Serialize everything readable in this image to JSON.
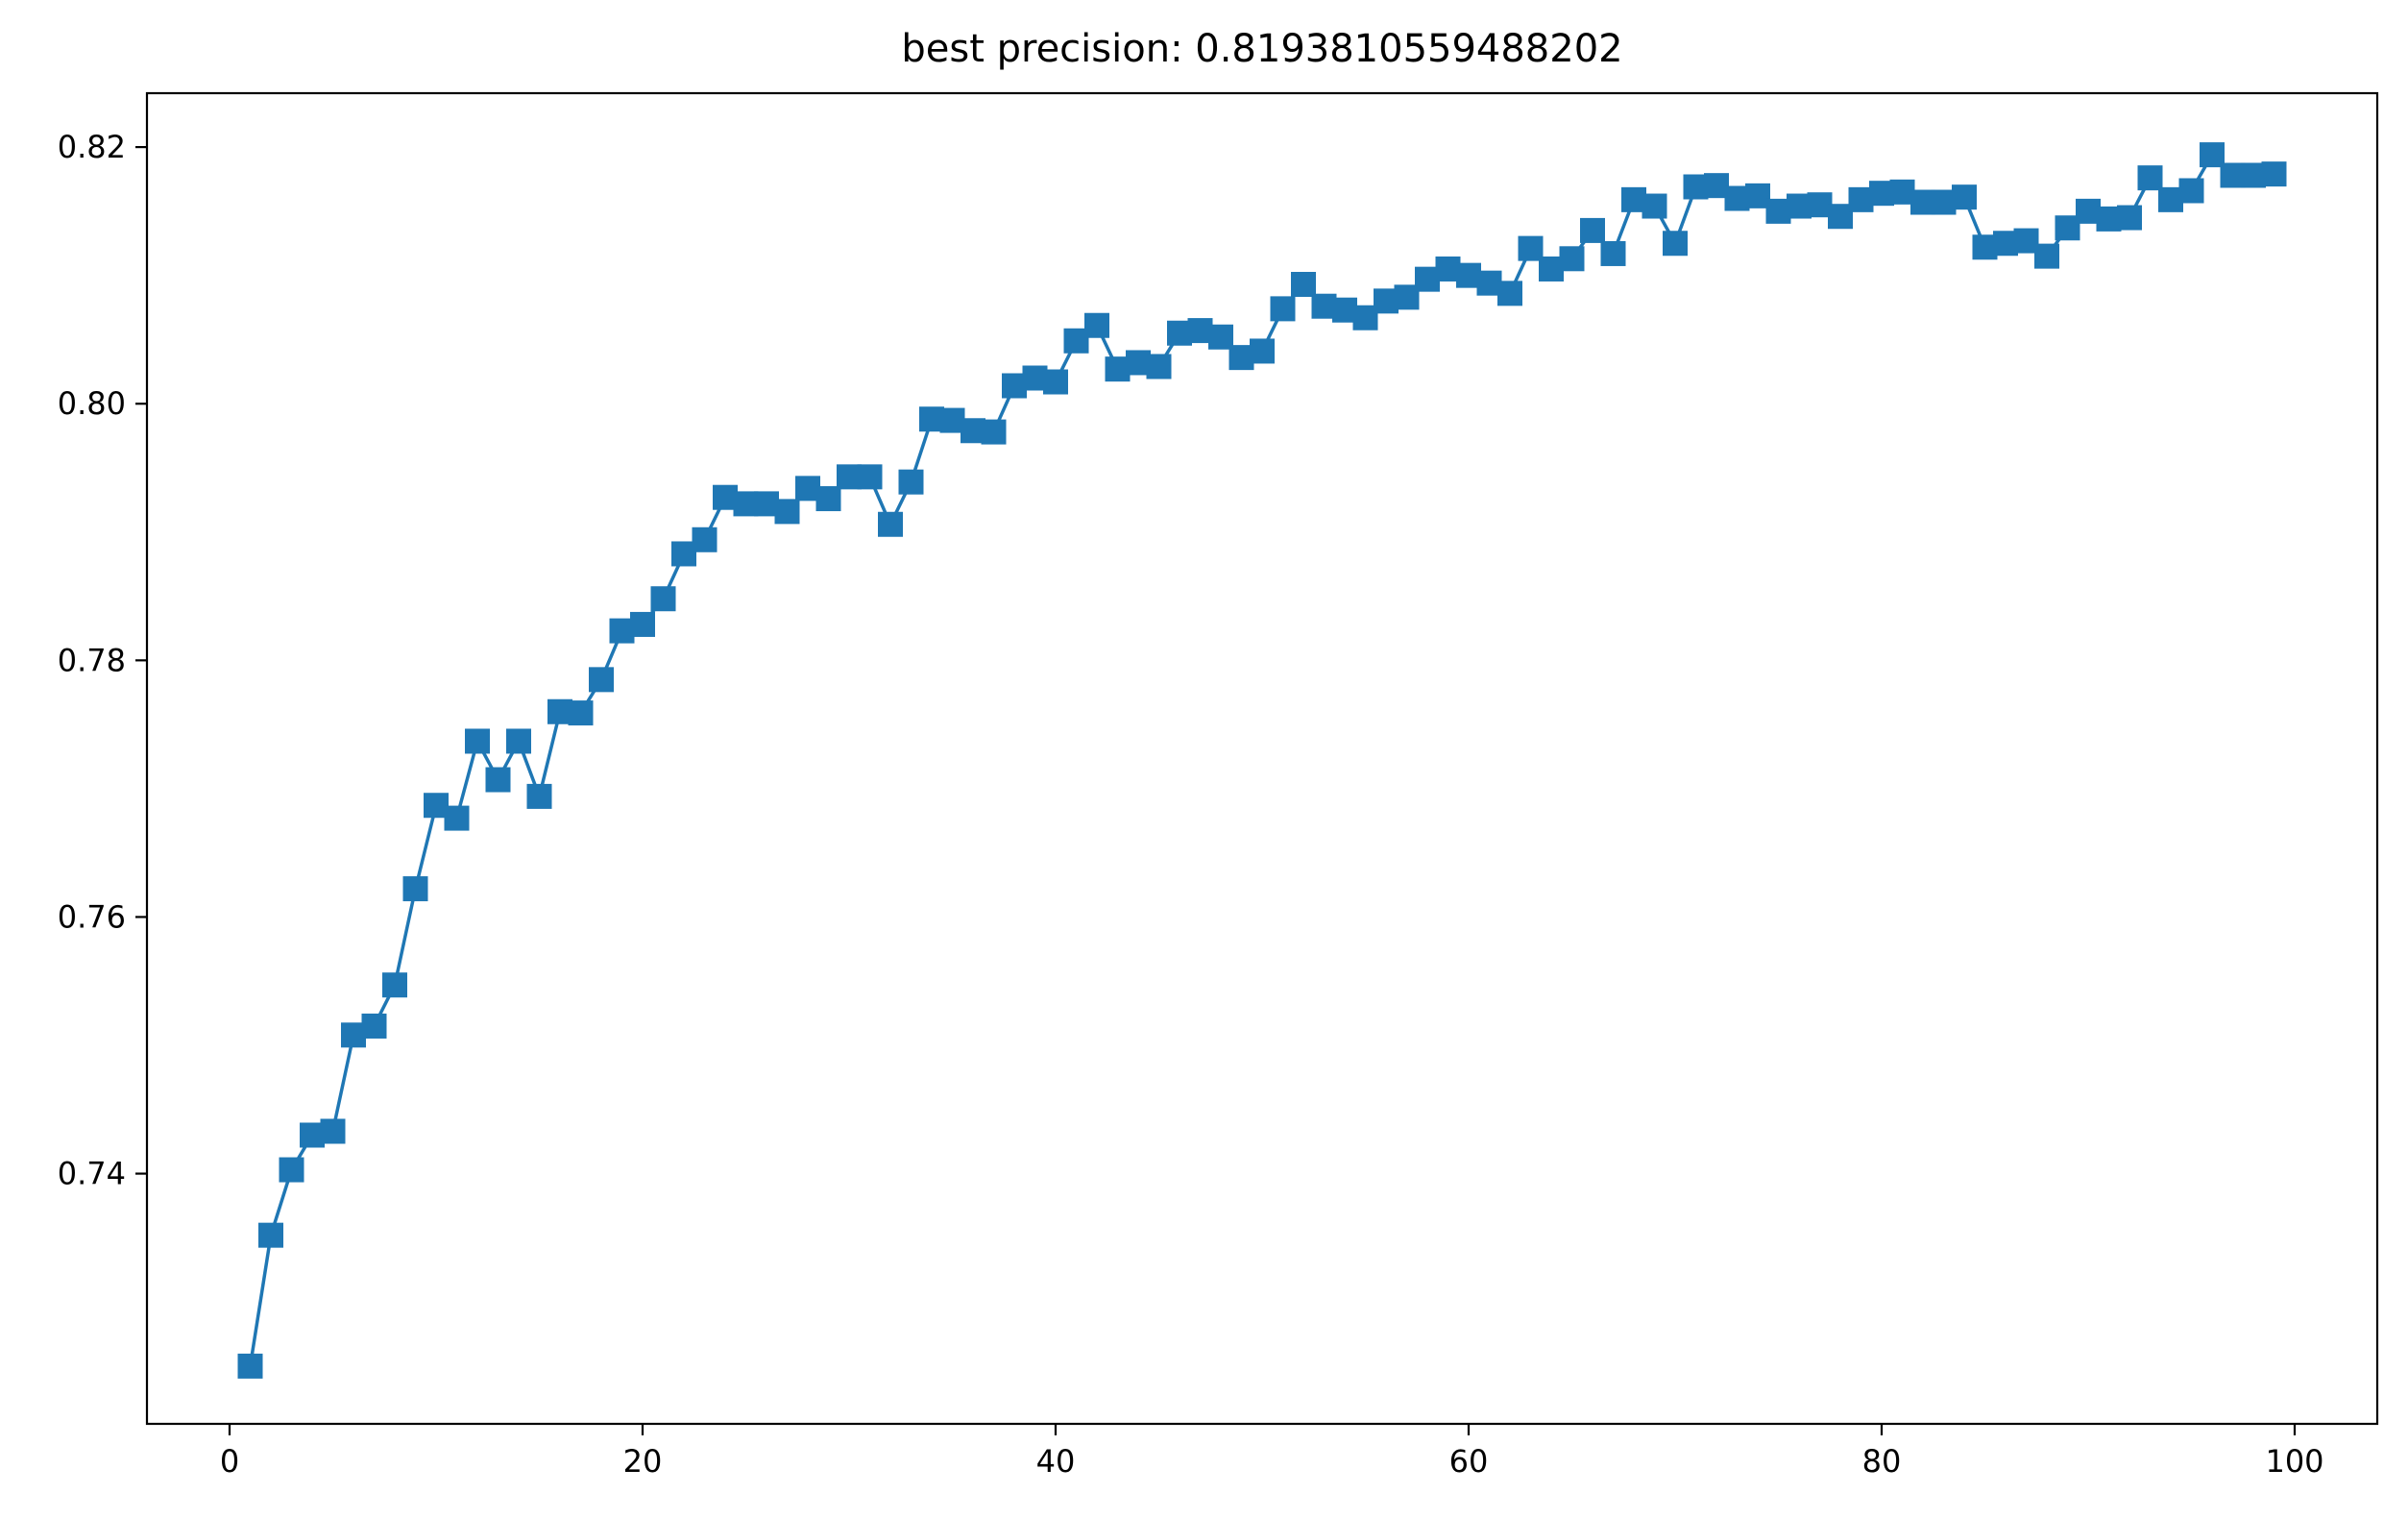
{
  "chart_data": {
    "type": "line",
    "title": "best precision: 0.8193810559488202",
    "xlabel": "",
    "ylabel": "",
    "xlim": [
      -4,
      104
    ],
    "ylim": [
      0.7205,
      0.8242
    ],
    "x_ticks": [
      0,
      20,
      40,
      60,
      80,
      100
    ],
    "x_tick_labels": [
      "0",
      "20",
      "40",
      "60",
      "80",
      "100"
    ],
    "y_ticks": [
      0.74,
      0.76,
      0.78,
      0.8,
      0.82
    ],
    "y_tick_labels": [
      "0.74",
      "0.76",
      "0.78",
      "0.80",
      "0.82"
    ],
    "grid": false,
    "legend": "none",
    "marker": "square",
    "color": "#1f77b4",
    "series": [
      {
        "x": [
          1,
          2,
          3,
          4,
          5,
          6,
          7,
          8,
          9,
          10,
          11,
          12,
          13,
          14,
          15,
          16,
          17,
          18,
          19,
          20,
          21,
          22,
          23,
          24,
          25,
          26,
          27,
          28,
          29,
          30,
          31,
          32,
          33,
          34,
          35,
          36,
          37,
          38,
          39,
          40,
          41,
          42,
          43,
          44,
          45,
          46,
          47,
          48,
          49,
          50,
          51,
          52,
          53,
          54,
          55,
          56,
          57,
          58,
          59,
          60,
          61,
          62,
          63,
          64,
          65,
          66,
          67,
          68,
          69,
          70,
          71,
          72,
          73,
          74,
          75,
          76,
          77,
          78,
          79,
          80,
          81,
          82,
          83,
          84,
          85,
          86,
          87,
          88,
          89,
          90,
          91,
          92,
          93,
          94,
          95,
          96,
          97,
          98,
          99
        ],
        "values": [
          0.725,
          0.7352,
          0.7403,
          0.743,
          0.7433,
          0.7508,
          0.7515,
          0.7547,
          0.7622,
          0.7687,
          0.7677,
          0.7737,
          0.7707,
          0.7737,
          0.7694,
          0.776,
          0.7759,
          0.7785,
          0.7823,
          0.7828,
          0.7848,
          0.7883,
          0.7894,
          0.7927,
          0.7922,
          0.7922,
          0.7916,
          0.7934,
          0.7926,
          0.7943,
          0.7943,
          0.7906,
          0.7939,
          0.7988,
          0.7987,
          0.7979,
          0.7978,
          0.8014,
          0.802,
          0.8017,
          0.8049,
          0.8061,
          0.8027,
          0.8032,
          0.8029,
          0.8055,
          0.8057,
          0.8052,
          0.8036,
          0.8041,
          0.8074,
          0.8093,
          0.8076,
          0.8073,
          0.8067,
          0.808,
          0.8083,
          0.8097,
          0.8105,
          0.81,
          0.8094,
          0.8086,
          0.8121,
          0.8105,
          0.8113,
          0.8135,
          0.8117,
          0.8159,
          0.8154,
          0.8125,
          0.8169,
          0.817,
          0.816,
          0.8162,
          0.815,
          0.8154,
          0.8155,
          0.8146,
          0.8159,
          0.8164,
          0.8165,
          0.8157,
          0.8157,
          0.8161,
          0.8122,
          0.8125,
          0.8127,
          0.8115,
          0.8137,
          0.815,
          0.8144,
          0.8145,
          0.8176,
          0.8159,
          0.8166,
          0.8194,
          0.8178,
          0.8178,
          0.8179
        ]
      }
    ]
  }
}
